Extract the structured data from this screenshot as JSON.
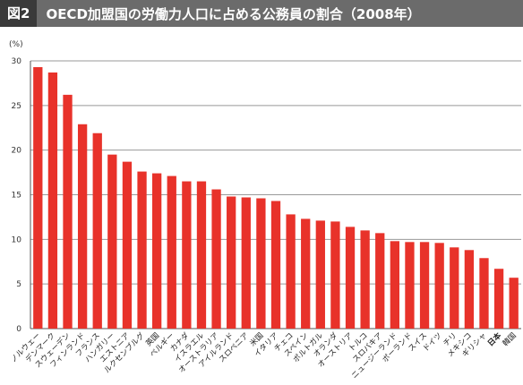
{
  "header": {
    "figure_label": "図2",
    "title": "OECD加盟国の労働力人口に占める公務員の割合（2008年）"
  },
  "chart_data": {
    "type": "bar",
    "ylabel": "(%)",
    "ylim": [
      0,
      30
    ],
    "yticks": [
      0,
      5,
      10,
      15,
      20,
      25,
      30
    ],
    "grid": true,
    "bar_color": "#e8322a",
    "highlight_color": "#e8322a",
    "highlight_category": "日本",
    "categories": [
      "ノルウェー",
      "デンマーク",
      "スウェーデン",
      "フィンランド",
      "フランス",
      "ハンガリー",
      "エストニア",
      "ルクセンブルグ",
      "英国",
      "ベルギー",
      "カナダ",
      "イスラエル",
      "オーストラリア",
      "アイルランド",
      "スロベニア",
      "米国",
      "イタリア",
      "チェコ",
      "スペイン",
      "ポルトガル",
      "オランダ",
      "オーストリア",
      "トルコ",
      "スロバキア",
      "ニュージーランド",
      "ポーランド",
      "スイス",
      "ドイツ",
      "チリ",
      "メキシコ",
      "ギリシャ",
      "日本",
      "韓国"
    ],
    "values": [
      29.3,
      28.7,
      26.2,
      22.9,
      21.9,
      19.5,
      18.7,
      17.6,
      17.4,
      17.1,
      16.5,
      16.5,
      15.6,
      14.8,
      14.7,
      14.6,
      14.3,
      12.8,
      12.3,
      12.1,
      12.0,
      11.4,
      11.0,
      10.7,
      9.8,
      9.7,
      9.7,
      9.6,
      9.1,
      8.8,
      7.9,
      6.7,
      5.7
    ]
  }
}
